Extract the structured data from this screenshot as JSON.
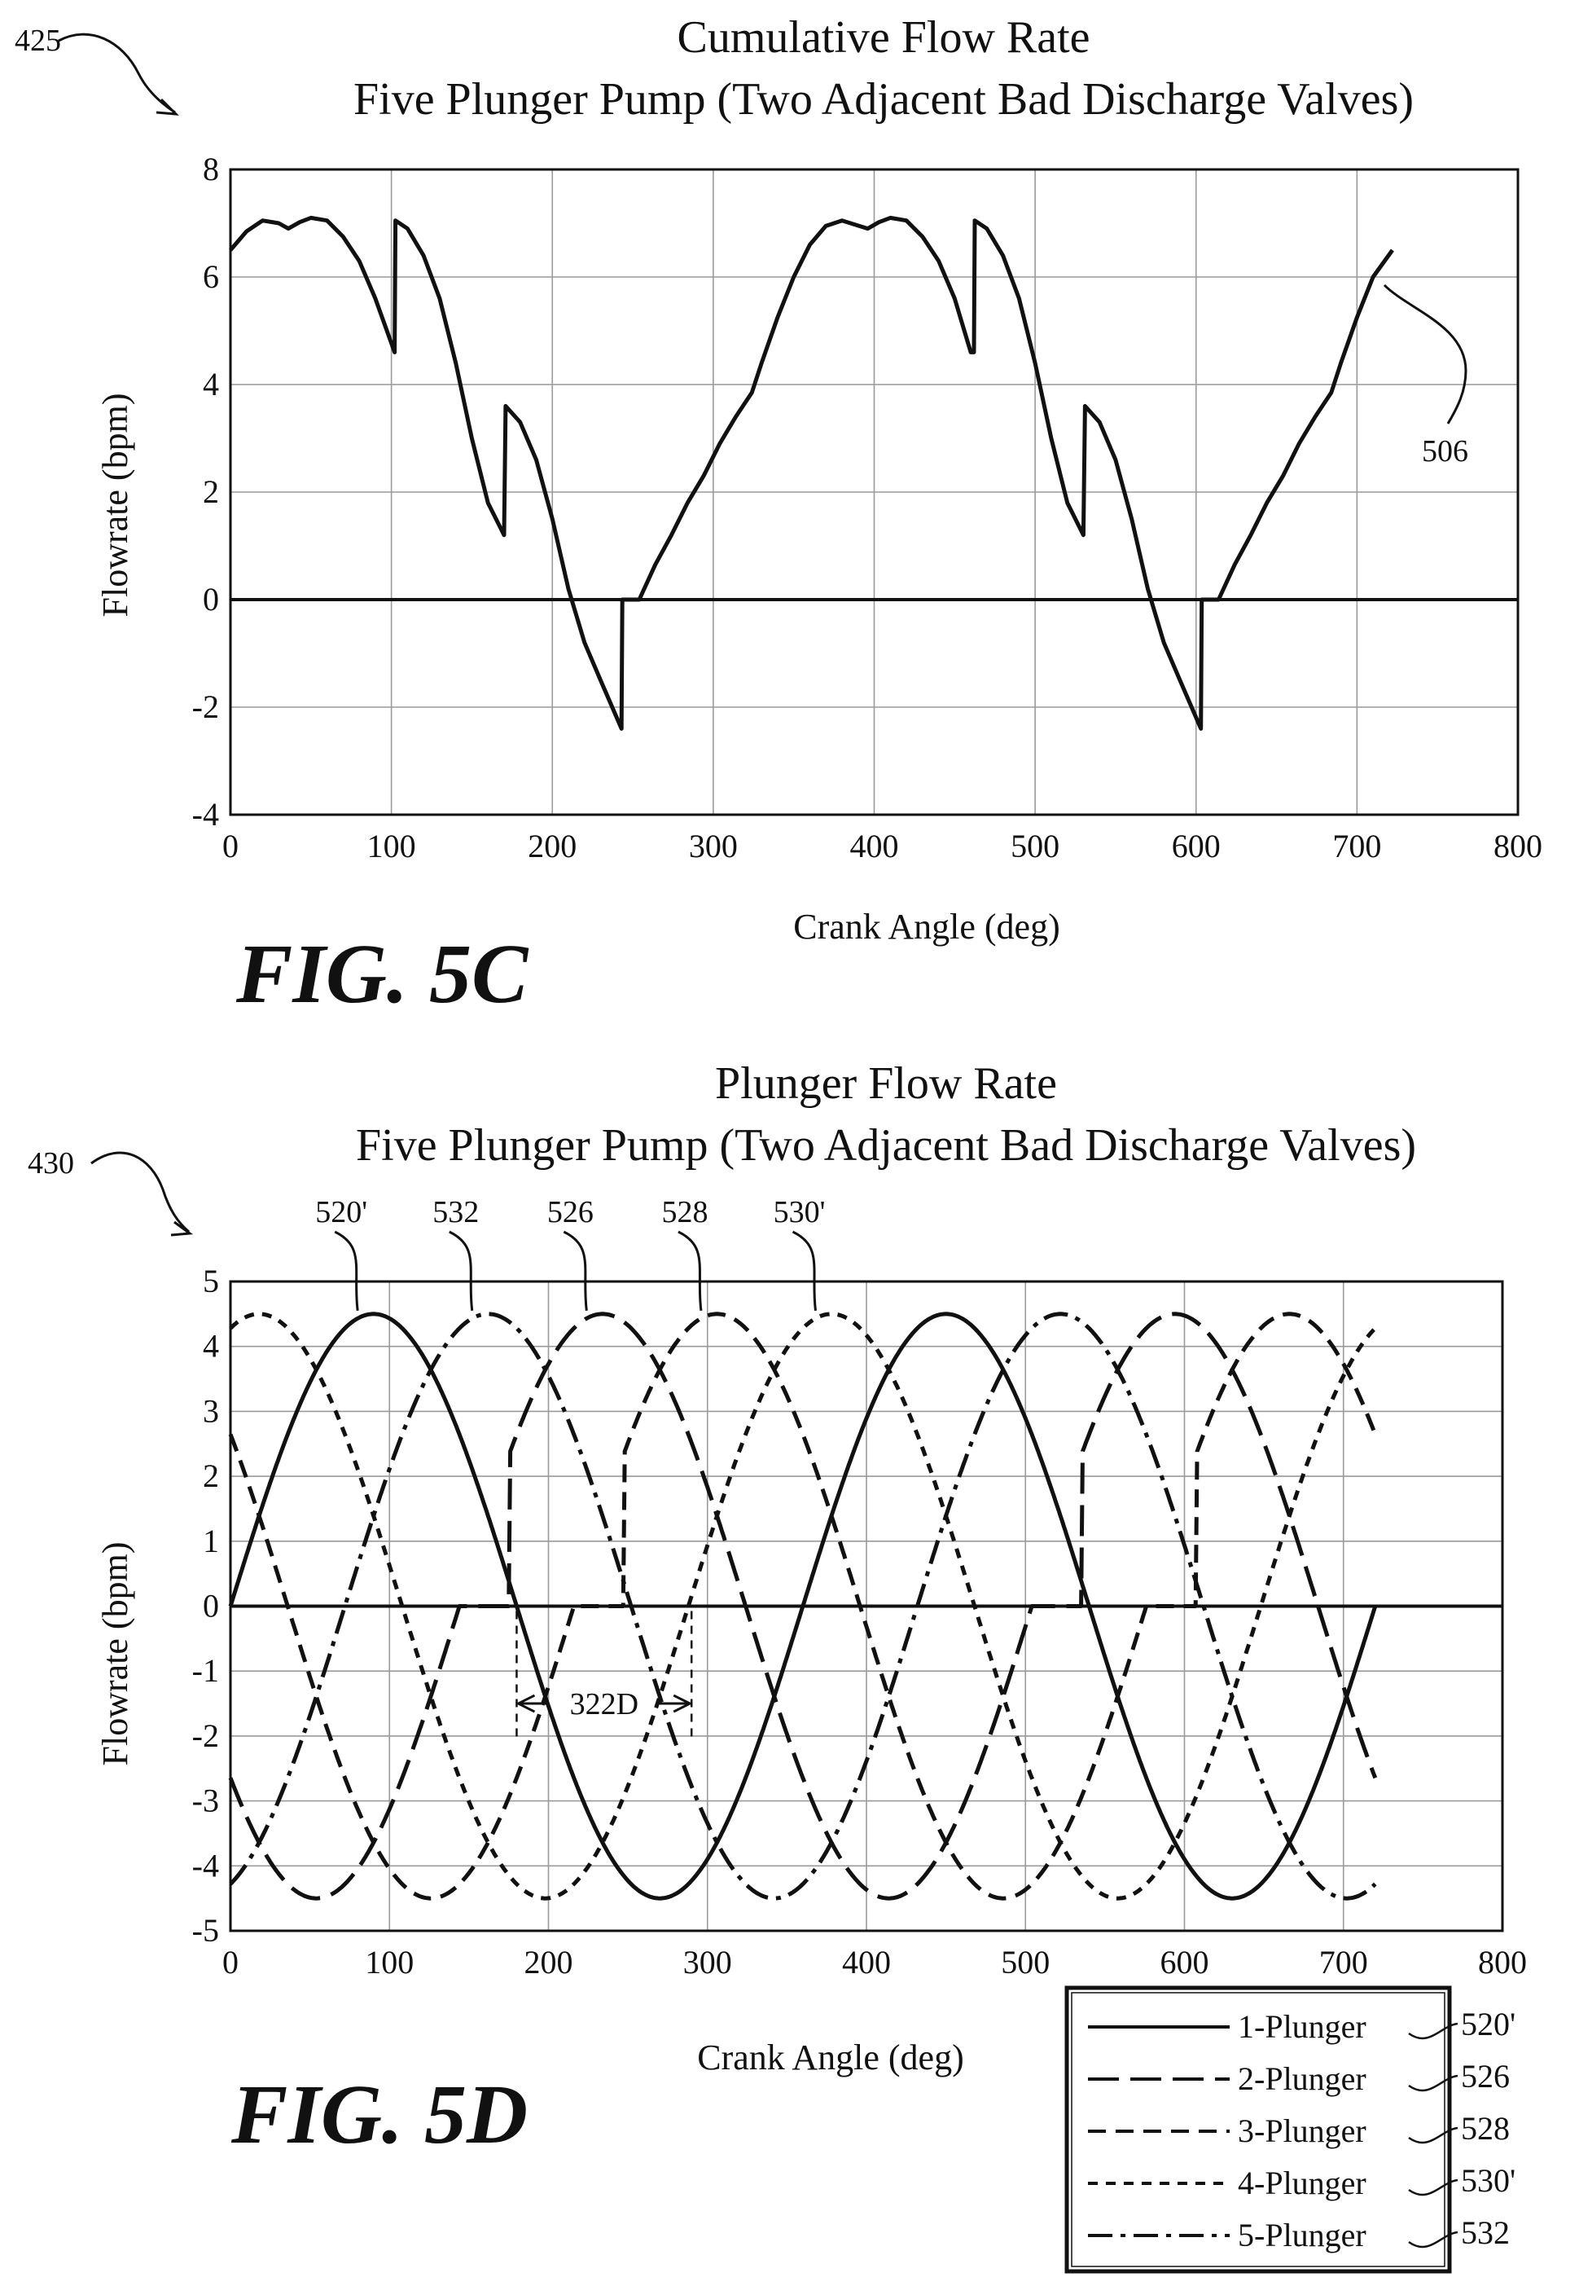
{
  "chart_data": [
    {
      "type": "line",
      "ref_label": "425",
      "title": "Cumulative Flow Rate",
      "subtitle": "Five Plunger Pump (Two Adjacent Bad Discharge Valves)",
      "xlabel": "Crank Angle (deg)",
      "ylabel": "Flowrate (bpm)",
      "xlim": [
        0,
        800
      ],
      "ylim": [
        -4,
        8
      ],
      "xticks": [
        "0",
        "100",
        "200",
        "300",
        "400",
        "500",
        "600",
        "700",
        "800"
      ],
      "yticks": [
        "8",
        "6",
        "4",
        "2",
        "0",
        "-2",
        "-4"
      ],
      "grid": true,
      "series_ref": "506",
      "figure_label": "FIG. 5C",
      "series": [
        {
          "style": "solid",
          "x": [
            0,
            10,
            20,
            30,
            36,
            43,
            50,
            60,
            70,
            80,
            90,
            102,
            102.5,
            110,
            120,
            130,
            140,
            150,
            160,
            170,
            171,
            180,
            190,
            200,
            210,
            220,
            230,
            243,
            243.5,
            254,
            264,
            274,
            284,
            294,
            304,
            314,
            324,
            330,
            340,
            350,
            360,
            370,
            380,
            396,
            403,
            410,
            420,
            430,
            440,
            450,
            460,
            462,
            462.5,
            470,
            480,
            490,
            500,
            510,
            520,
            530,
            531,
            540,
            550,
            560,
            570,
            580,
            590,
            603,
            603.5,
            614,
            624,
            634,
            644,
            654,
            664,
            674,
            684,
            690,
            700,
            710,
            722
          ],
          "y": [
            6.5,
            6.85,
            7.05,
            7.0,
            6.9,
            7.02,
            7.1,
            7.05,
            6.75,
            6.3,
            5.6,
            4.6,
            7.05,
            6.9,
            6.4,
            5.6,
            4.4,
            3.0,
            1.8,
            1.2,
            3.6,
            3.3,
            2.6,
            1.5,
            0.2,
            -0.8,
            -1.5,
            -2.4,
            0.0,
            0.0,
            0.65,
            1.2,
            1.8,
            2.3,
            2.9,
            3.4,
            3.85,
            4.4,
            5.25,
            6.0,
            6.6,
            6.95,
            7.05,
            6.9,
            7.02,
            7.1,
            7.05,
            6.75,
            6.3,
            5.6,
            4.6,
            4.6,
            7.05,
            6.9,
            6.4,
            5.6,
            4.4,
            3.0,
            1.8,
            1.2,
            3.6,
            3.3,
            2.6,
            1.5,
            0.2,
            -0.8,
            -1.5,
            -2.4,
            0.0,
            0.0,
            0.65,
            1.2,
            1.8,
            2.3,
            2.9,
            3.4,
            3.85,
            4.4,
            5.25,
            6.0,
            6.5
          ]
        }
      ]
    },
    {
      "type": "line",
      "ref_label": "430",
      "title": "Plunger Flow Rate",
      "subtitle": "Five Plunger Pump (Two Adjacent Bad Discharge Valves)",
      "xlabel": "Crank Angle (deg)",
      "ylabel": "Flowrate (bpm)",
      "xlim": [
        0,
        800
      ],
      "ylim": [
        -5,
        5
      ],
      "xticks": [
        "0",
        "100",
        "200",
        "300",
        "400",
        "500",
        "600",
        "700",
        "800"
      ],
      "yticks": [
        "5",
        "4",
        "3",
        "2",
        "1",
        "0",
        "-1",
        "-2",
        "-3",
        "-4",
        "-5"
      ],
      "grid": true,
      "amplitude": 4.5,
      "dimension_label": "322D",
      "dimension_range": [
        180,
        290
      ],
      "figure_label": "FIG. 5D",
      "peak_refs": [
        {
          "label": "520'",
          "x": 80
        },
        {
          "label": "532",
          "x": 152
        },
        {
          "label": "526",
          "x": 224
        },
        {
          "label": "528",
          "x": 296
        },
        {
          "label": "530'",
          "x": 368
        }
      ],
      "series": [
        {
          "name": "1-Plunger",
          "ref": "520'",
          "style": "solid",
          "phase_deg": 0,
          "bad_discharge": false
        },
        {
          "name": "2-Plunger",
          "ref": "526",
          "style": "longdash",
          "phase_deg": 144,
          "bad_discharge": true
        },
        {
          "name": "3-Plunger",
          "ref": "528",
          "style": "dash",
          "phase_deg": 216,
          "bad_discharge": true
        },
        {
          "name": "4-Plunger",
          "ref": "530'",
          "style": "shortdash",
          "phase_deg": 288,
          "bad_discharge": false
        },
        {
          "name": "5-Plunger",
          "ref": "532",
          "style": "dashdot",
          "phase_deg": 72,
          "bad_discharge": false
        }
      ]
    }
  ]
}
